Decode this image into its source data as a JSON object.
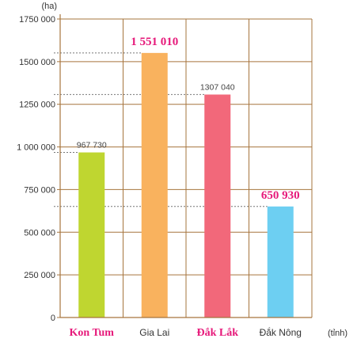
{
  "chart_data": {
    "type": "bar",
    "y_unit": "(ha)",
    "x_unit": "(tỉnh)",
    "ylim": [
      0,
      1750000
    ],
    "y_ticks": [
      {
        "value": 0,
        "label": "0"
      },
      {
        "value": 250000,
        "label": "250 000"
      },
      {
        "value": 500000,
        "label": "500 000"
      },
      {
        "value": 750000,
        "label": "750 000"
      },
      {
        "value": 1000000,
        "label": "1 000 000"
      },
      {
        "value": 1250000,
        "label": "1250 000"
      },
      {
        "value": 1500000,
        "label": "1500 000"
      },
      {
        "value": 1750000,
        "label": "1750 000"
      }
    ],
    "grid": true,
    "categories": [
      "Kon Tum",
      "Gia Lai",
      "Đắk Lắk",
      "Đắk Nông"
    ],
    "values": [
      967730,
      1551010,
      1307040,
      650930
    ],
    "value_labels": [
      "967 730",
      "1 551 010",
      "1307 040",
      "650 930"
    ],
    "highlighted": [
      true,
      false,
      true,
      false
    ],
    "highlighted_values": [
      false,
      true,
      false,
      true
    ],
    "colors": [
      "#bfd630",
      "#f9b25e",
      "#f2687a",
      "#6dcff2"
    ],
    "highlight_color": "#e6197a"
  }
}
